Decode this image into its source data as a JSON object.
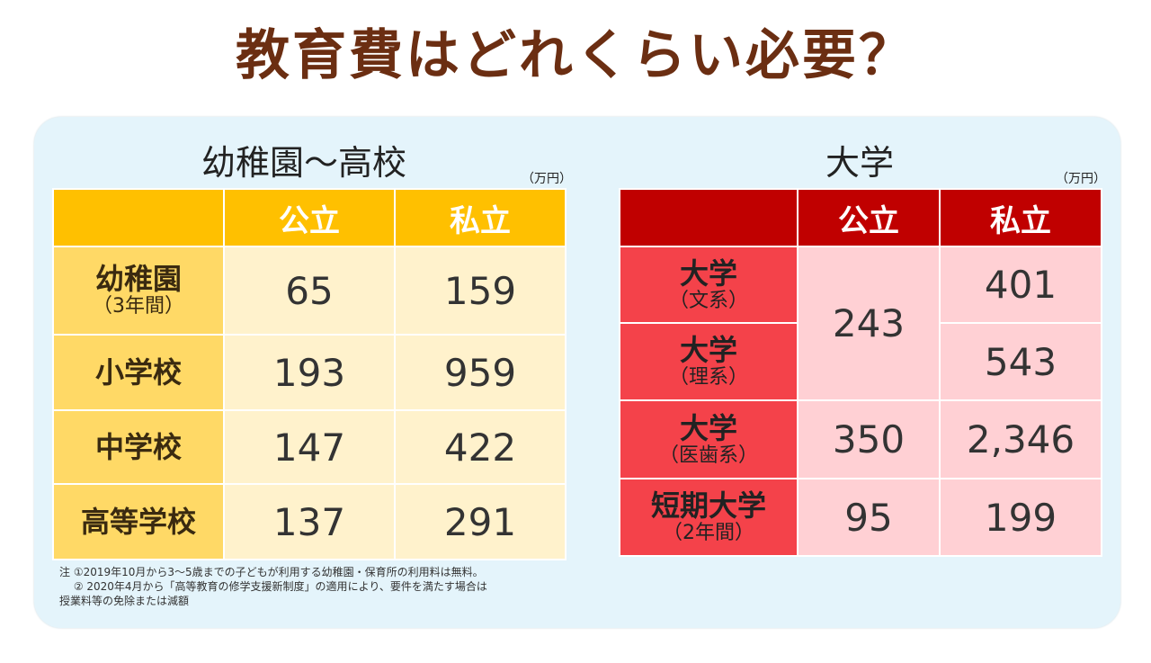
{
  "title": "教育費はどれくらい必要？",
  "left": {
    "heading": "幼稚園〜高校",
    "unit": "（万円）",
    "columns": [
      "公立",
      "私立"
    ],
    "rows": [
      {
        "label": "幼稚園",
        "sub": "（3年間）",
        "public": "65",
        "private": "159"
      },
      {
        "label": "小学校",
        "sub": "",
        "public": "193",
        "private": "959"
      },
      {
        "label": "中学校",
        "sub": "",
        "public": "147",
        "private": "422"
      },
      {
        "label": "高等学校",
        "sub": "",
        "public": "137",
        "private": "291"
      }
    ]
  },
  "right": {
    "heading": "大学",
    "unit": "（万円）",
    "columns": [
      "公立",
      "私立"
    ],
    "rows": [
      {
        "label": "大学",
        "sub": "（文系）",
        "public": "243",
        "private": "401"
      },
      {
        "label": "大学",
        "sub": "（理系）",
        "public": "",
        "private": "543"
      },
      {
        "label": "大学",
        "sub": "（医歯系）",
        "public": "350",
        "private": "2,346"
      },
      {
        "label": "短期大学",
        "sub": "（2年間）",
        "public": "95",
        "private": "199"
      }
    ]
  },
  "notes": [
    "注 ①2019年10月から3〜5歳までの子どもが利用する幼稚園・保育所の利用料は無料。",
    "　 ② 2020年4月から「高等教育の修学支援新制度」の適用により、要件を満たす場合は",
    "授業料等の免除または減額"
  ]
}
